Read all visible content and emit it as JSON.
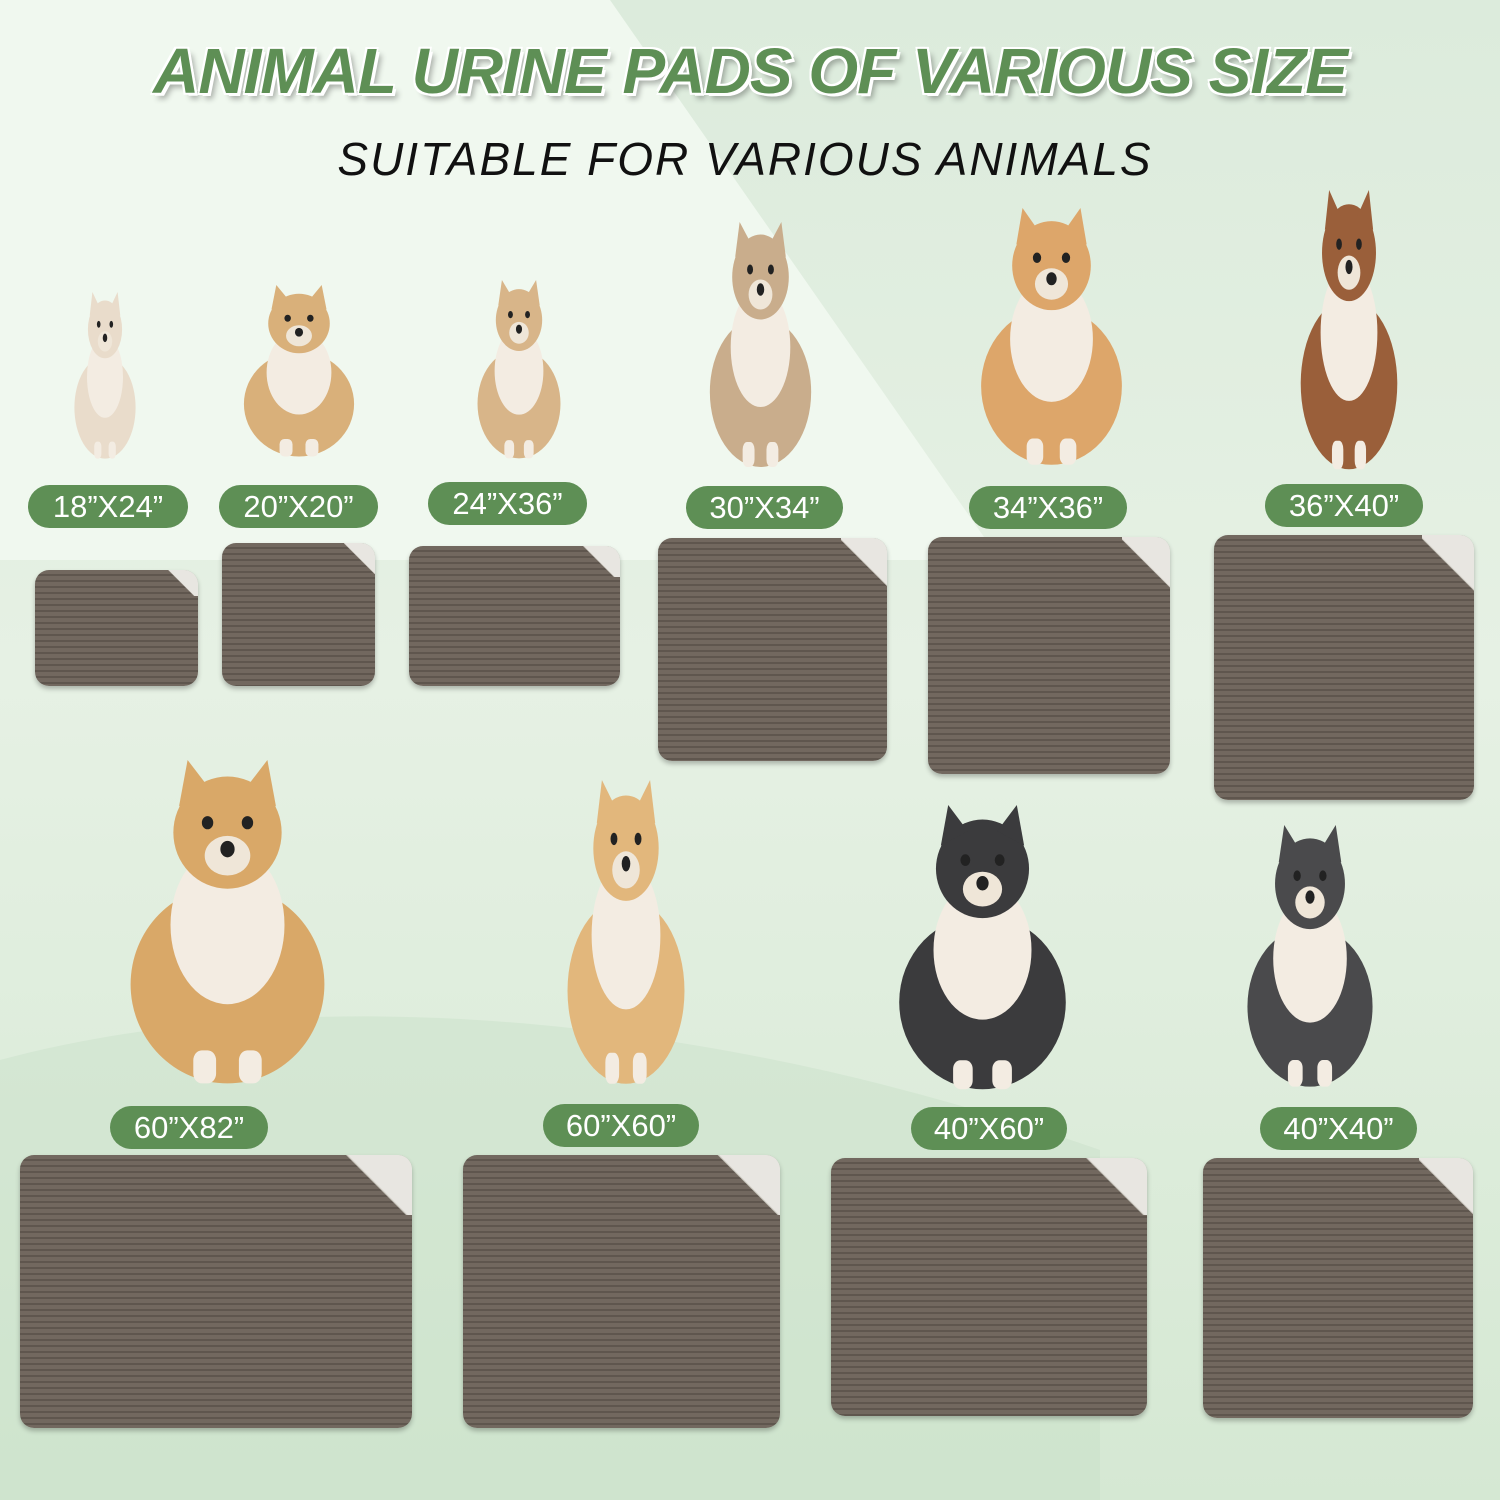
{
  "header": {
    "title": "ANIMAL URINE PADS OF VARIOUS SIZE",
    "subtitle": "SUITABLE FOR VARIOUS ANIMALS"
  },
  "sizes": [
    {
      "label": "18”X24”"
    },
    {
      "label": "20”X20”"
    },
    {
      "label": "24”X36”"
    },
    {
      "label": "30”X34”"
    },
    {
      "label": "34”X36”"
    },
    {
      "label": "36”X40”"
    },
    {
      "label": "60”X82”"
    },
    {
      "label": "60”X60”"
    },
    {
      "label": "40”X60”"
    },
    {
      "label": "40”X40”"
    }
  ],
  "colors": {
    "accent": "#5e8f55",
    "pad": "#6f655c",
    "pad_back": "#e8e6e1"
  }
}
